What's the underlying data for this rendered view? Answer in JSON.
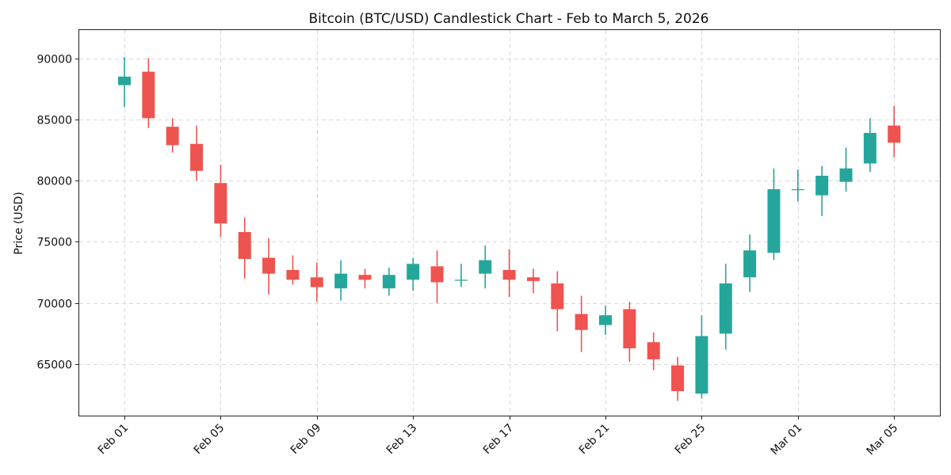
{
  "chart_data": {
    "type": "candlestick",
    "title": "Bitcoin (BTC/USD) Candlestick Chart - Feb to March 5, 2026",
    "xlabel": "",
    "ylabel": "Price (USD)",
    "ylim": [
      60800,
      92300
    ],
    "yticks": [
      65000,
      70000,
      75000,
      80000,
      85000,
      90000
    ],
    "xticks": [
      {
        "index": 0,
        "label": "Feb 01"
      },
      {
        "index": 4,
        "label": "Feb 05"
      },
      {
        "index": 8,
        "label": "Feb 09"
      },
      {
        "index": 12,
        "label": "Feb 13"
      },
      {
        "index": 16,
        "label": "Feb 17"
      },
      {
        "index": 20,
        "label": "Feb 21"
      },
      {
        "index": 24,
        "label": "Feb 25"
      },
      {
        "index": 28,
        "label": "Mar 01"
      },
      {
        "index": 32,
        "label": "Mar 05"
      }
    ],
    "colors": {
      "up": "#26a69a",
      "down": "#ef5350"
    },
    "series": [
      {
        "date": "Feb 01",
        "open": 87800,
        "high": 90100,
        "low": 86000,
        "close": 88500
      },
      {
        "date": "Feb 02",
        "open": 88900,
        "high": 90000,
        "low": 84300,
        "close": 85100
      },
      {
        "date": "Feb 03",
        "open": 84400,
        "high": 85100,
        "low": 82300,
        "close": 82900
      },
      {
        "date": "Feb 04",
        "open": 83000,
        "high": 84500,
        "low": 80000,
        "close": 80800
      },
      {
        "date": "Feb 05",
        "open": 79800,
        "high": 81300,
        "low": 75400,
        "close": 76500
      },
      {
        "date": "Feb 06",
        "open": 75800,
        "high": 77000,
        "low": 72000,
        "close": 73600
      },
      {
        "date": "Feb 07",
        "open": 73700,
        "high": 75300,
        "low": 70700,
        "close": 72400
      },
      {
        "date": "Feb 08",
        "open": 72700,
        "high": 73900,
        "low": 71500,
        "close": 71900
      },
      {
        "date": "Feb 09",
        "open": 72100,
        "high": 73300,
        "low": 70100,
        "close": 71300
      },
      {
        "date": "Feb 10",
        "open": 71200,
        "high": 73500,
        "low": 70200,
        "close": 72400
      },
      {
        "date": "Feb 11",
        "open": 72300,
        "high": 72800,
        "low": 71200,
        "close": 71900
      },
      {
        "date": "Feb 12",
        "open": 71200,
        "high": 72900,
        "low": 70600,
        "close": 72300
      },
      {
        "date": "Feb 13",
        "open": 71900,
        "high": 73700,
        "low": 71000,
        "close": 73200
      },
      {
        "date": "Feb 14",
        "open": 73000,
        "high": 74300,
        "low": 70000,
        "close": 71700
      },
      {
        "date": "Feb 15",
        "open": 71900,
        "high": 73200,
        "low": 71300,
        "close": 71900
      },
      {
        "date": "Feb 16",
        "open": 72400,
        "high": 74700,
        "low": 71200,
        "close": 73500
      },
      {
        "date": "Feb 17",
        "open": 72700,
        "high": 74400,
        "low": 70500,
        "close": 71900
      },
      {
        "date": "Feb 18",
        "open": 72100,
        "high": 72800,
        "low": 70800,
        "close": 71800
      },
      {
        "date": "Feb 19",
        "open": 71600,
        "high": 72600,
        "low": 67700,
        "close": 69500
      },
      {
        "date": "Feb 20",
        "open": 69100,
        "high": 70600,
        "low": 66000,
        "close": 67800
      },
      {
        "date": "Feb 21",
        "open": 68200,
        "high": 69800,
        "low": 67400,
        "close": 69000
      },
      {
        "date": "Feb 22",
        "open": 69500,
        "high": 70100,
        "low": 65200,
        "close": 66300
      },
      {
        "date": "Feb 23",
        "open": 66800,
        "high": 67600,
        "low": 64500,
        "close": 65400
      },
      {
        "date": "Feb 24",
        "open": 64900,
        "high": 65600,
        "low": 62000,
        "close": 62800
      },
      {
        "date": "Feb 25",
        "open": 62600,
        "high": 69000,
        "low": 62200,
        "close": 67300
      },
      {
        "date": "Feb 26",
        "open": 67500,
        "high": 73200,
        "low": 66200,
        "close": 71600
      },
      {
        "date": "Feb 27",
        "open": 72100,
        "high": 75600,
        "low": 70900,
        "close": 74300
      },
      {
        "date": "Feb 28",
        "open": 74100,
        "high": 81000,
        "low": 73500,
        "close": 79300
      },
      {
        "date": "Mar 01",
        "open": 79300,
        "high": 80900,
        "low": 78300,
        "close": 79300
      },
      {
        "date": "Mar 02",
        "open": 78800,
        "high": 81200,
        "low": 77100,
        "close": 80400
      },
      {
        "date": "Mar 03",
        "open": 79900,
        "high": 82700,
        "low": 79100,
        "close": 81000
      },
      {
        "date": "Mar 04",
        "open": 81400,
        "high": 85100,
        "low": 80700,
        "close": 83900
      },
      {
        "date": "Mar 05",
        "open": 84500,
        "high": 86100,
        "low": 81900,
        "close": 83100
      }
    ]
  }
}
